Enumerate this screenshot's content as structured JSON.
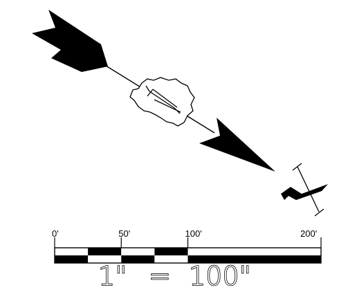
{
  "north_arrow": {
    "icon": "north-arrow-icon"
  },
  "scale_bar": {
    "tick_labels": [
      "0'",
      "50'",
      "100'",
      "200'"
    ],
    "tick_values": [
      0,
      50,
      100,
      200
    ],
    "max_value": 200,
    "segments": [
      {
        "from": 0,
        "to": 25,
        "top": "white",
        "bottom": "black"
      },
      {
        "from": 25,
        "to": 50,
        "top": "black",
        "bottom": "white"
      },
      {
        "from": 50,
        "to": 75,
        "top": "white",
        "bottom": "black"
      },
      {
        "from": 75,
        "to": 100,
        "top": "black",
        "bottom": "white"
      },
      {
        "from": 100,
        "to": 200,
        "top": "white",
        "bottom": "black"
      }
    ]
  },
  "scale_text": {
    "left": "1\"",
    "equals": "=",
    "right": "100\""
  },
  "colors": {
    "ink": "#000000",
    "paper": "#ffffff"
  }
}
